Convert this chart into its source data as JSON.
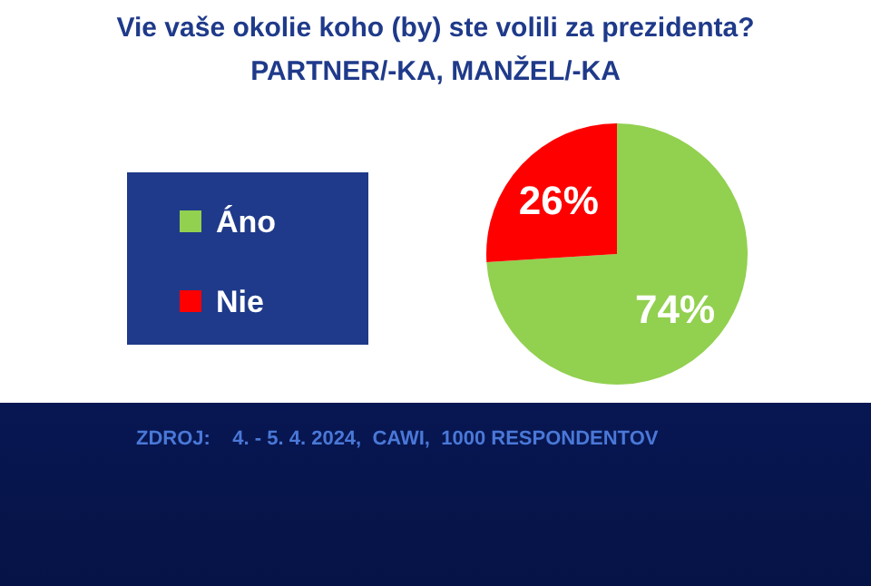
{
  "chart_data": {
    "type": "pie",
    "title": "Vie vaše okolie koho (by) ste volili za prezidenta?",
    "subtitle": "PARTNER/-KA, MANŽEL/-KA",
    "categories": [
      "Áno",
      "Nie"
    ],
    "values": [
      74,
      26
    ],
    "colors": [
      "#92d050",
      "#ff0000"
    ],
    "value_labels": [
      "74%",
      "26%"
    ],
    "legend": "left",
    "annotations": [
      "ZDROJ:    4. - 5. 4. 2024,  CAWI,  1000 RESPONDENTOV"
    ]
  }
}
